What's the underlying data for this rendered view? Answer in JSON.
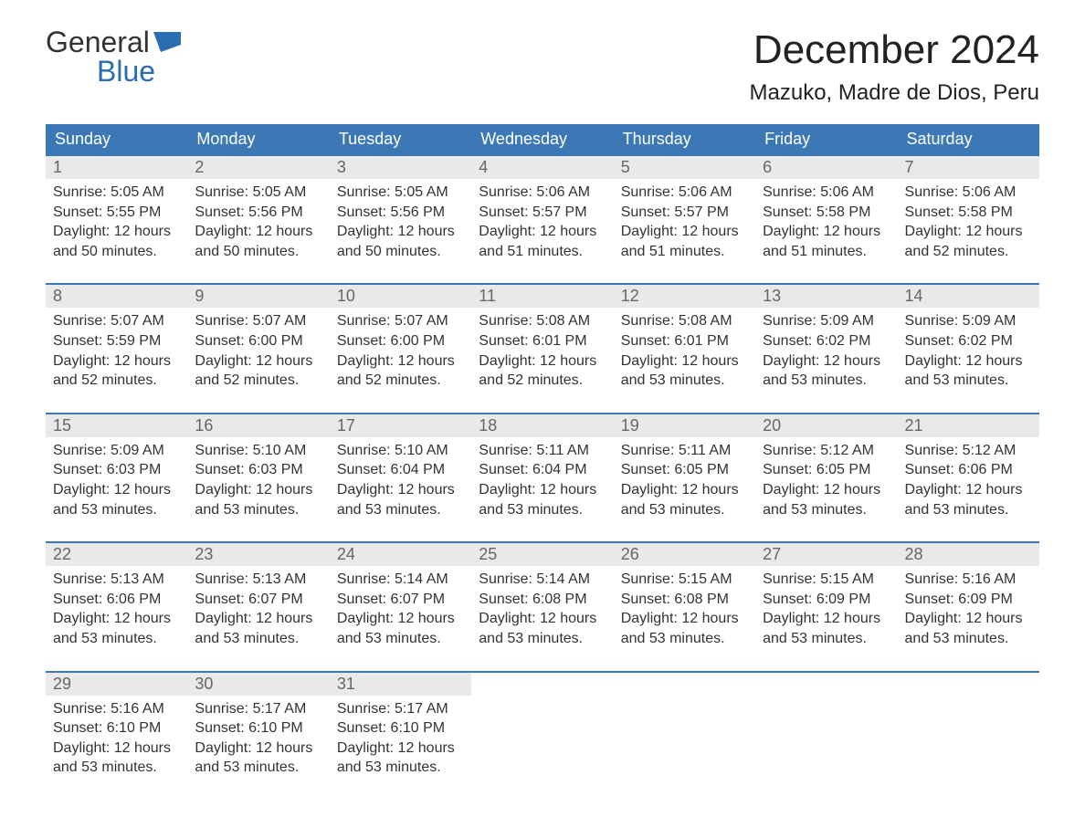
{
  "logo": {
    "word1": "General",
    "word2": "Blue"
  },
  "title": "December 2024",
  "location": "Mazuko, Madre de Dios, Peru",
  "colors": {
    "header_bg": "#3b78b5",
    "header_text": "#ffffff",
    "daynum_bg": "#e9e9e9",
    "daynum_text": "#666666",
    "body_text": "#333333",
    "logo_blue": "#2a6db0",
    "week_border": "#3b78b5",
    "page_bg": "#ffffff"
  },
  "fonts": {
    "family": "Arial, Helvetica, sans-serif",
    "month_title_pt": 44,
    "location_pt": 24,
    "dow_pt": 18,
    "daynum_pt": 18,
    "body_pt": 16
  },
  "calendar": {
    "type": "table",
    "columns": [
      "Sunday",
      "Monday",
      "Tuesday",
      "Wednesday",
      "Thursday",
      "Friday",
      "Saturday"
    ],
    "weeks": [
      [
        {
          "n": "1",
          "sunrise": "Sunrise: 5:05 AM",
          "sunset": "Sunset: 5:55 PM",
          "d1": "Daylight: 12 hours",
          "d2": "and 50 minutes."
        },
        {
          "n": "2",
          "sunrise": "Sunrise: 5:05 AM",
          "sunset": "Sunset: 5:56 PM",
          "d1": "Daylight: 12 hours",
          "d2": "and 50 minutes."
        },
        {
          "n": "3",
          "sunrise": "Sunrise: 5:05 AM",
          "sunset": "Sunset: 5:56 PM",
          "d1": "Daylight: 12 hours",
          "d2": "and 50 minutes."
        },
        {
          "n": "4",
          "sunrise": "Sunrise: 5:06 AM",
          "sunset": "Sunset: 5:57 PM",
          "d1": "Daylight: 12 hours",
          "d2": "and 51 minutes."
        },
        {
          "n": "5",
          "sunrise": "Sunrise: 5:06 AM",
          "sunset": "Sunset: 5:57 PM",
          "d1": "Daylight: 12 hours",
          "d2": "and 51 minutes."
        },
        {
          "n": "6",
          "sunrise": "Sunrise: 5:06 AM",
          "sunset": "Sunset: 5:58 PM",
          "d1": "Daylight: 12 hours",
          "d2": "and 51 minutes."
        },
        {
          "n": "7",
          "sunrise": "Sunrise: 5:06 AM",
          "sunset": "Sunset: 5:58 PM",
          "d1": "Daylight: 12 hours",
          "d2": "and 52 minutes."
        }
      ],
      [
        {
          "n": "8",
          "sunrise": "Sunrise: 5:07 AM",
          "sunset": "Sunset: 5:59 PM",
          "d1": "Daylight: 12 hours",
          "d2": "and 52 minutes."
        },
        {
          "n": "9",
          "sunrise": "Sunrise: 5:07 AM",
          "sunset": "Sunset: 6:00 PM",
          "d1": "Daylight: 12 hours",
          "d2": "and 52 minutes."
        },
        {
          "n": "10",
          "sunrise": "Sunrise: 5:07 AM",
          "sunset": "Sunset: 6:00 PM",
          "d1": "Daylight: 12 hours",
          "d2": "and 52 minutes."
        },
        {
          "n": "11",
          "sunrise": "Sunrise: 5:08 AM",
          "sunset": "Sunset: 6:01 PM",
          "d1": "Daylight: 12 hours",
          "d2": "and 52 minutes."
        },
        {
          "n": "12",
          "sunrise": "Sunrise: 5:08 AM",
          "sunset": "Sunset: 6:01 PM",
          "d1": "Daylight: 12 hours",
          "d2": "and 53 minutes."
        },
        {
          "n": "13",
          "sunrise": "Sunrise: 5:09 AM",
          "sunset": "Sunset: 6:02 PM",
          "d1": "Daylight: 12 hours",
          "d2": "and 53 minutes."
        },
        {
          "n": "14",
          "sunrise": "Sunrise: 5:09 AM",
          "sunset": "Sunset: 6:02 PM",
          "d1": "Daylight: 12 hours",
          "d2": "and 53 minutes."
        }
      ],
      [
        {
          "n": "15",
          "sunrise": "Sunrise: 5:09 AM",
          "sunset": "Sunset: 6:03 PM",
          "d1": "Daylight: 12 hours",
          "d2": "and 53 minutes."
        },
        {
          "n": "16",
          "sunrise": "Sunrise: 5:10 AM",
          "sunset": "Sunset: 6:03 PM",
          "d1": "Daylight: 12 hours",
          "d2": "and 53 minutes."
        },
        {
          "n": "17",
          "sunrise": "Sunrise: 5:10 AM",
          "sunset": "Sunset: 6:04 PM",
          "d1": "Daylight: 12 hours",
          "d2": "and 53 minutes."
        },
        {
          "n": "18",
          "sunrise": "Sunrise: 5:11 AM",
          "sunset": "Sunset: 6:04 PM",
          "d1": "Daylight: 12 hours",
          "d2": "and 53 minutes."
        },
        {
          "n": "19",
          "sunrise": "Sunrise: 5:11 AM",
          "sunset": "Sunset: 6:05 PM",
          "d1": "Daylight: 12 hours",
          "d2": "and 53 minutes."
        },
        {
          "n": "20",
          "sunrise": "Sunrise: 5:12 AM",
          "sunset": "Sunset: 6:05 PM",
          "d1": "Daylight: 12 hours",
          "d2": "and 53 minutes."
        },
        {
          "n": "21",
          "sunrise": "Sunrise: 5:12 AM",
          "sunset": "Sunset: 6:06 PM",
          "d1": "Daylight: 12 hours",
          "d2": "and 53 minutes."
        }
      ],
      [
        {
          "n": "22",
          "sunrise": "Sunrise: 5:13 AM",
          "sunset": "Sunset: 6:06 PM",
          "d1": "Daylight: 12 hours",
          "d2": "and 53 minutes."
        },
        {
          "n": "23",
          "sunrise": "Sunrise: 5:13 AM",
          "sunset": "Sunset: 6:07 PM",
          "d1": "Daylight: 12 hours",
          "d2": "and 53 minutes."
        },
        {
          "n": "24",
          "sunrise": "Sunrise: 5:14 AM",
          "sunset": "Sunset: 6:07 PM",
          "d1": "Daylight: 12 hours",
          "d2": "and 53 minutes."
        },
        {
          "n": "25",
          "sunrise": "Sunrise: 5:14 AM",
          "sunset": "Sunset: 6:08 PM",
          "d1": "Daylight: 12 hours",
          "d2": "and 53 minutes."
        },
        {
          "n": "26",
          "sunrise": "Sunrise: 5:15 AM",
          "sunset": "Sunset: 6:08 PM",
          "d1": "Daylight: 12 hours",
          "d2": "and 53 minutes."
        },
        {
          "n": "27",
          "sunrise": "Sunrise: 5:15 AM",
          "sunset": "Sunset: 6:09 PM",
          "d1": "Daylight: 12 hours",
          "d2": "and 53 minutes."
        },
        {
          "n": "28",
          "sunrise": "Sunrise: 5:16 AM",
          "sunset": "Sunset: 6:09 PM",
          "d1": "Daylight: 12 hours",
          "d2": "and 53 minutes."
        }
      ],
      [
        {
          "n": "29",
          "sunrise": "Sunrise: 5:16 AM",
          "sunset": "Sunset: 6:10 PM",
          "d1": "Daylight: 12 hours",
          "d2": "and 53 minutes."
        },
        {
          "n": "30",
          "sunrise": "Sunrise: 5:17 AM",
          "sunset": "Sunset: 6:10 PM",
          "d1": "Daylight: 12 hours",
          "d2": "and 53 minutes."
        },
        {
          "n": "31",
          "sunrise": "Sunrise: 5:17 AM",
          "sunset": "Sunset: 6:10 PM",
          "d1": "Daylight: 12 hours",
          "d2": "and 53 minutes."
        },
        {
          "empty": true
        },
        {
          "empty": true
        },
        {
          "empty": true
        },
        {
          "empty": true
        }
      ]
    ]
  }
}
